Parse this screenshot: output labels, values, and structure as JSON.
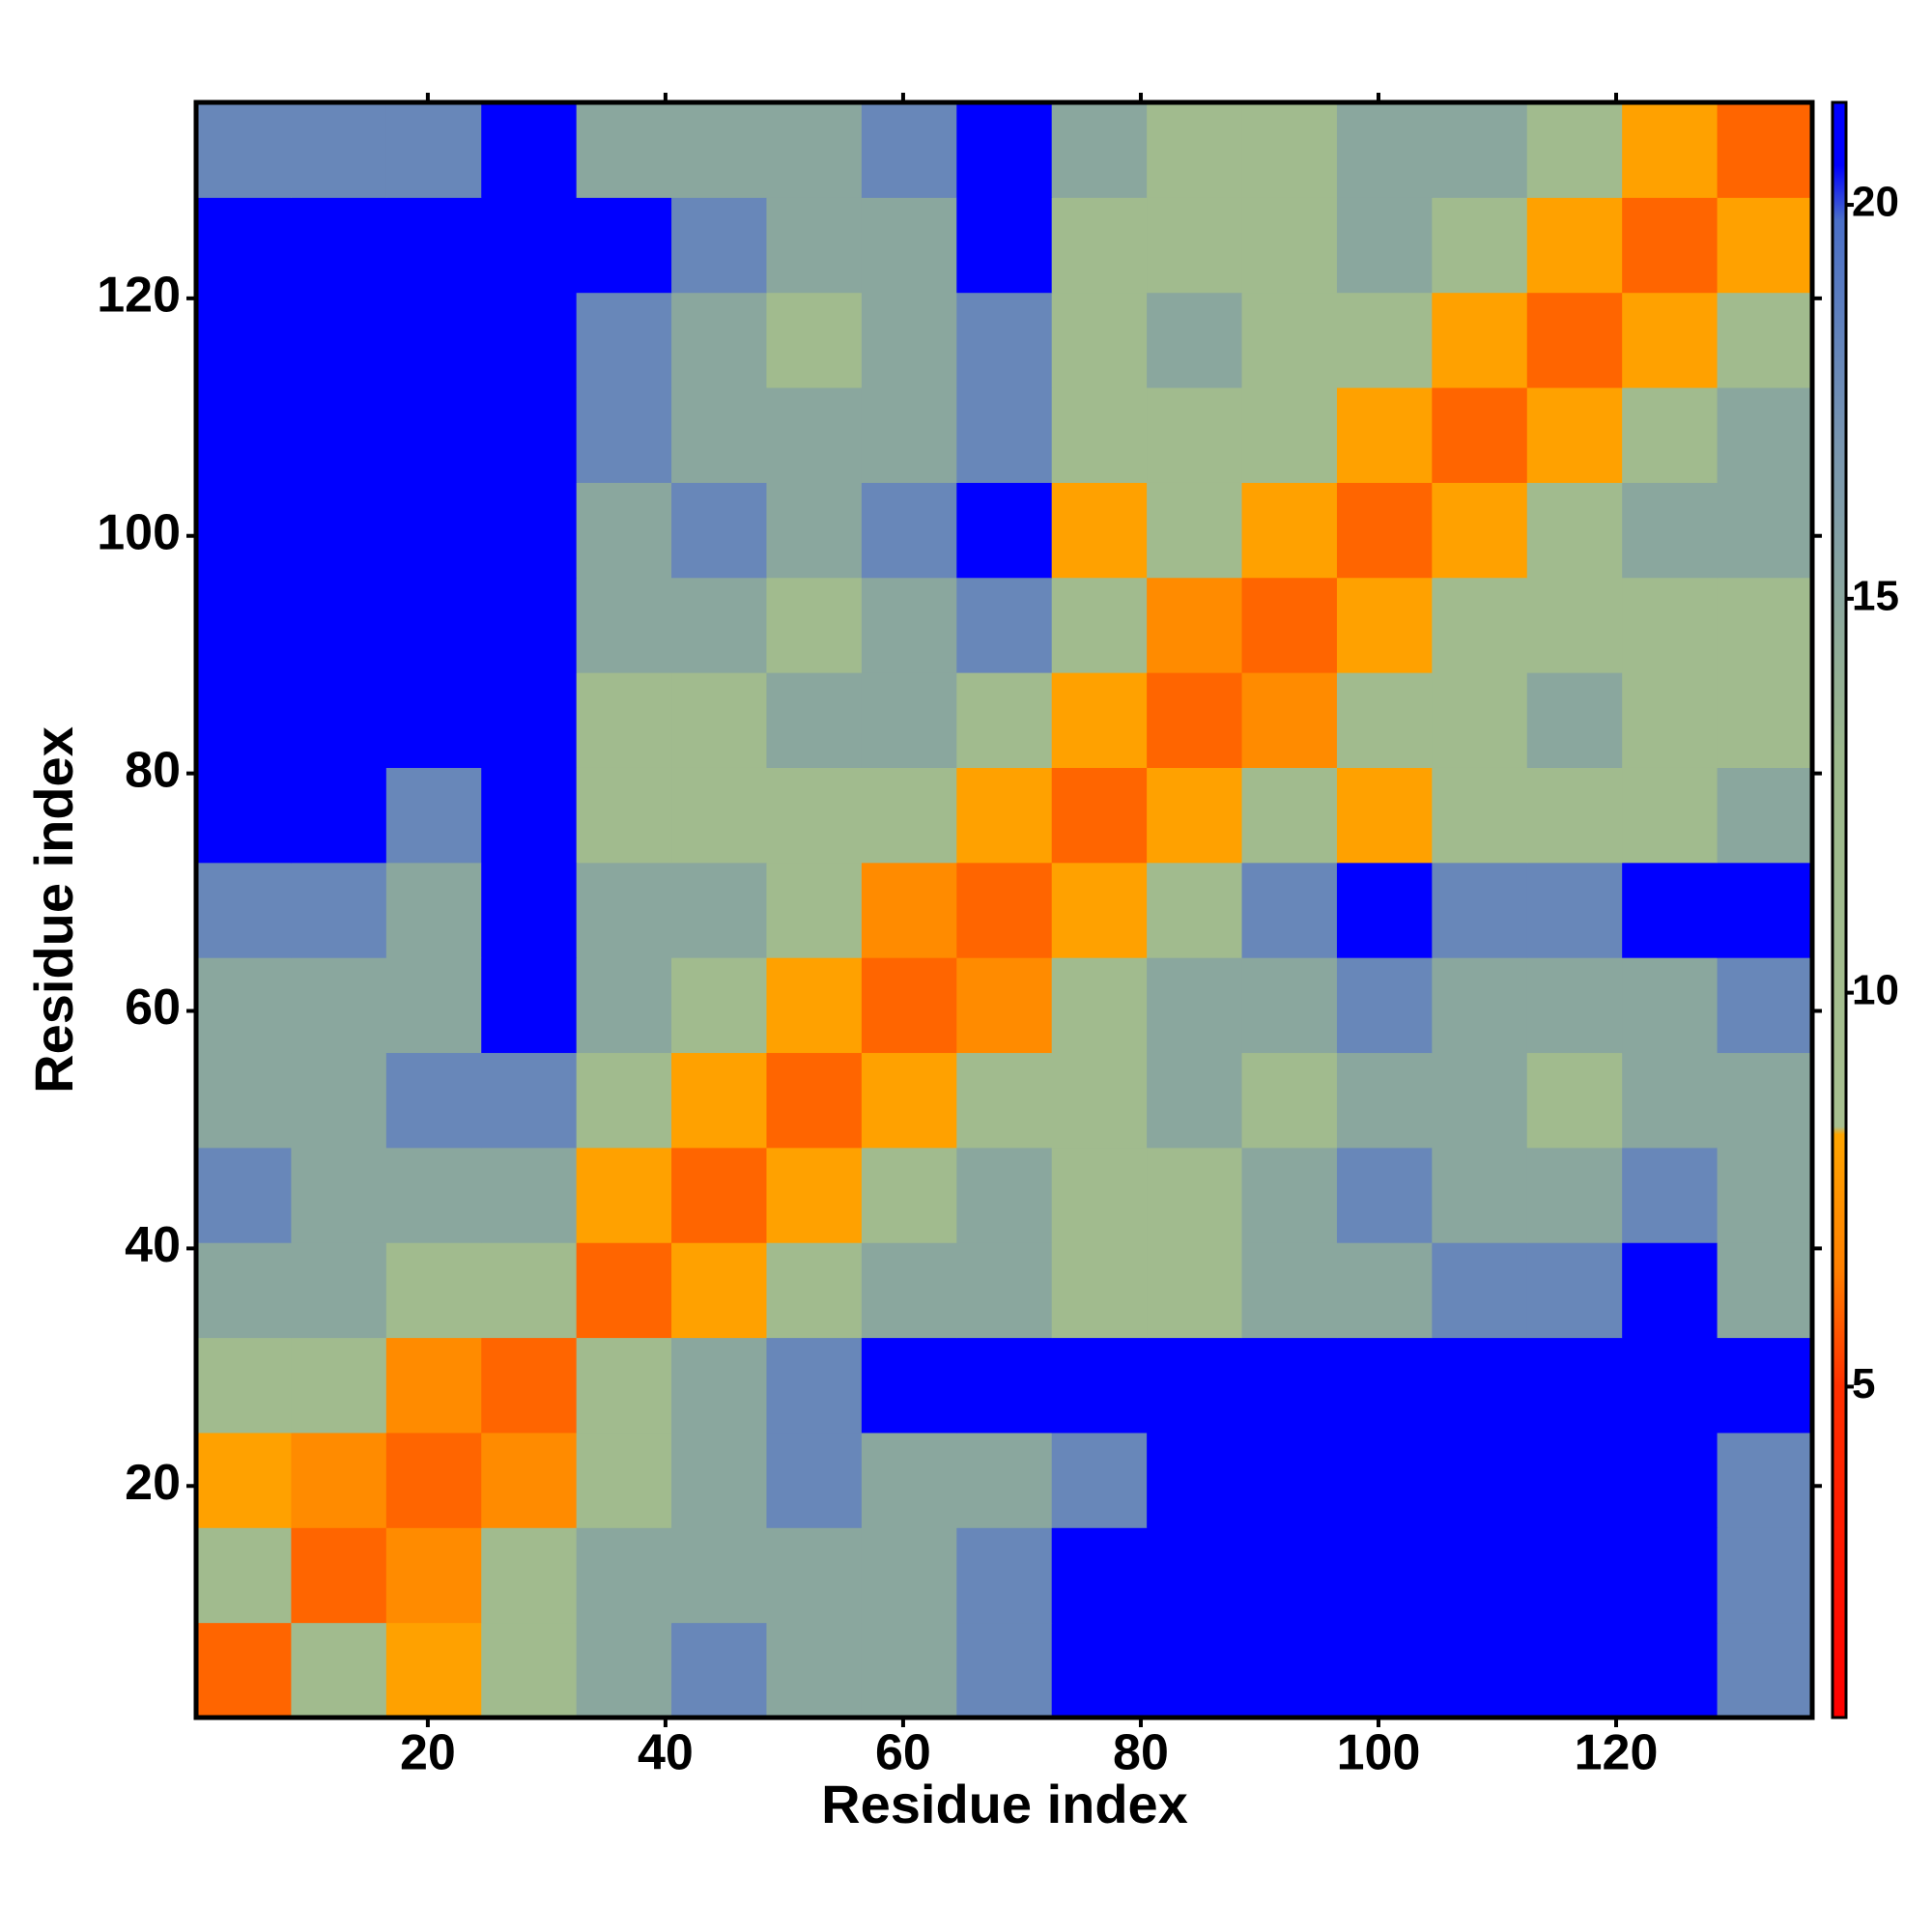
{
  "chart_data": {
    "type": "heatmap",
    "xlabel": "Residue index",
    "ylabel": "Residue index",
    "xlim": [
      0.5,
      136.5
    ],
    "ylim": [
      0.5,
      136.5
    ],
    "xticks": [
      20,
      40,
      60,
      80,
      100,
      120
    ],
    "yticks": [
      20,
      40,
      60,
      80,
      100,
      120
    ],
    "xbins": [
      0.5,
      8.5,
      16.5,
      24.5,
      32.5,
      40.5,
      48.5,
      56.5,
      64.5,
      72.5,
      80.5,
      88.5,
      96.5,
      104.5,
      112.5,
      120.5,
      128.5,
      136.5
    ],
    "ybins": [
      0.5,
      8.5,
      16.5,
      24.5,
      32.5,
      40.5,
      48.5,
      56.5,
      64.5,
      72.5,
      80.5,
      88.5,
      96.5,
      104.5,
      112.5,
      120.5,
      128.5,
      136.5
    ],
    "values": [
      [
        6,
        11,
        8,
        11,
        15,
        18,
        15,
        15,
        18,
        21,
        21,
        21,
        21,
        21,
        21,
        21,
        18
      ],
      [
        11,
        6,
        7,
        11,
        15,
        15,
        15,
        15,
        18,
        21,
        21,
        21,
        21,
        21,
        21,
        21,
        18
      ],
      [
        8,
        7,
        6,
        7,
        11,
        15,
        18,
        15,
        15,
        18,
        21,
        21,
        21,
        21,
        21,
        21,
        18
      ],
      [
        11,
        11,
        7,
        6,
        11,
        15,
        18,
        21,
        21,
        21,
        21,
        21,
        21,
        21,
        21,
        21,
        21
      ],
      [
        15,
        15,
        11,
        11,
        6,
        8,
        11,
        15,
        15,
        11,
        11,
        15,
        15,
        18,
        18,
        21,
        15
      ],
      [
        18,
        15,
        15,
        15,
        8,
        6,
        8,
        11,
        15,
        11,
        11,
        15,
        18,
        15,
        15,
        18,
        15
      ],
      [
        15,
        15,
        18,
        18,
        11,
        8,
        6,
        8,
        11,
        11,
        15,
        11,
        15,
        15,
        11,
        15,
        15
      ],
      [
        15,
        15,
        15,
        21,
        15,
        11,
        8,
        6,
        7,
        11,
        15,
        15,
        18,
        15,
        15,
        15,
        18
      ],
      [
        18,
        18,
        15,
        21,
        15,
        15,
        11,
        7,
        6,
        8,
        11,
        18,
        21,
        18,
        18,
        21,
        21
      ],
      [
        21,
        21,
        18,
        21,
        11,
        11,
        11,
        11,
        8,
        6,
        8,
        11,
        8,
        11,
        11,
        11,
        15
      ],
      [
        21,
        21,
        21,
        21,
        11,
        11,
        15,
        15,
        11,
        8,
        6,
        7,
        11,
        11,
        15,
        11,
        11
      ],
      [
        21,
        21,
        21,
        21,
        15,
        15,
        11,
        15,
        18,
        11,
        7,
        6,
        8,
        11,
        11,
        11,
        11
      ],
      [
        21,
        21,
        21,
        21,
        15,
        18,
        15,
        18,
        21,
        8,
        11,
        8,
        6,
        8,
        11,
        15,
        15
      ],
      [
        21,
        21,
        21,
        21,
        18,
        15,
        15,
        15,
        18,
        11,
        11,
        11,
        8,
        6,
        8,
        11,
        15
      ],
      [
        21,
        21,
        21,
        21,
        18,
        15,
        11,
        15,
        18,
        11,
        15,
        11,
        11,
        8,
        6,
        8,
        11
      ],
      [
        21,
        21,
        21,
        21,
        21,
        18,
        15,
        15,
        21,
        11,
        11,
        11,
        15,
        11,
        8,
        6,
        8
      ],
      [
        18,
        18,
        18,
        21,
        15,
        15,
        15,
        18,
        21,
        15,
        11,
        11,
        15,
        15,
        11,
        8,
        6
      ]
    ],
    "zlim": [
      0.8,
      21.3
    ],
    "zticks": [
      5,
      10,
      15,
      20
    ],
    "colorscale": [
      [
        0.8,
        "#ff0000"
      ],
      [
        5,
        "#ff3000"
      ],
      [
        6.5,
        "#ff8000"
      ],
      [
        8.2,
        "#ffa500"
      ],
      [
        8.3,
        "#a8c090"
      ],
      [
        13,
        "#9cb88c"
      ],
      [
        17,
        "#7895b0"
      ],
      [
        19.8,
        "#4a6fc8"
      ],
      [
        20.5,
        "#0000ff"
      ],
      [
        21.3,
        "#0000ff"
      ]
    ]
  }
}
